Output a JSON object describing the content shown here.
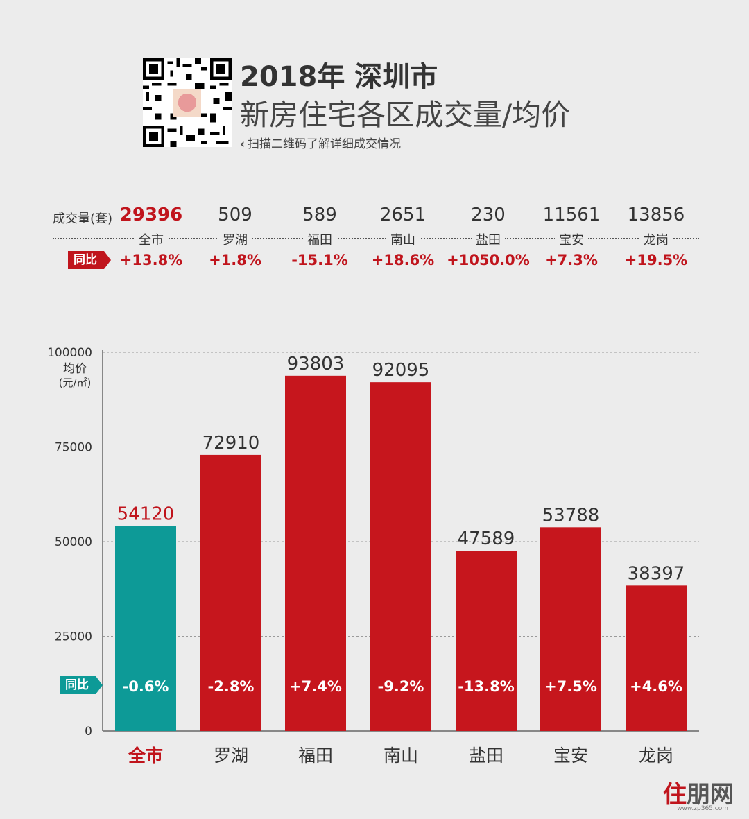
{
  "header": {
    "title_line1": "2018年 深圳市",
    "title_line2": "新房住宅各区成交量/均价",
    "scan_note": "扫描二维码了解详细成交情况",
    "scan_chevron": "‹"
  },
  "summary": {
    "count_label": "成交量(套)",
    "yoy_tag": "同比",
    "columns": [
      {
        "name": "全市",
        "count": "29396",
        "yoy": "+13.8%"
      },
      {
        "name": "罗湖",
        "count": "509",
        "yoy": "+1.8%"
      },
      {
        "name": "福田",
        "count": "589",
        "yoy": "-15.1%"
      },
      {
        "name": "南山",
        "count": "2651",
        "yoy": "+18.6%"
      },
      {
        "name": "盐田",
        "count": "230",
        "yoy": "+1050.0%"
      },
      {
        "name": "宝安",
        "count": "11561",
        "yoy": "+7.3%"
      },
      {
        "name": "龙岗",
        "count": "13856",
        "yoy": "+19.5%"
      }
    ]
  },
  "chart_data": {
    "type": "bar",
    "ylabel": "均价",
    "yunit": "(元/㎡)",
    "ylim": [
      0,
      100000
    ],
    "yticks": [
      0,
      25000,
      50000,
      75000,
      100000
    ],
    "grid": true,
    "categories": [
      "全市",
      "罗湖",
      "福田",
      "南山",
      "盐田",
      "宝安",
      "龙岗"
    ],
    "values": [
      54120,
      72910,
      93803,
      92095,
      47589,
      53788,
      38397
    ],
    "yoy_tag": "同比",
    "yoy": [
      "-0.6%",
      "-2.8%",
      "+7.4%",
      "-9.2%",
      "-13.8%",
      "+7.5%",
      "+4.6%"
    ],
    "colors": {
      "highlight": "#0d9a97",
      "bar": "#c6161d",
      "highlight_label": "#c0141c"
    }
  },
  "watermark": {
    "text_accent": "住",
    "text_rest": "朋网",
    "url": "www.zp365.com"
  }
}
